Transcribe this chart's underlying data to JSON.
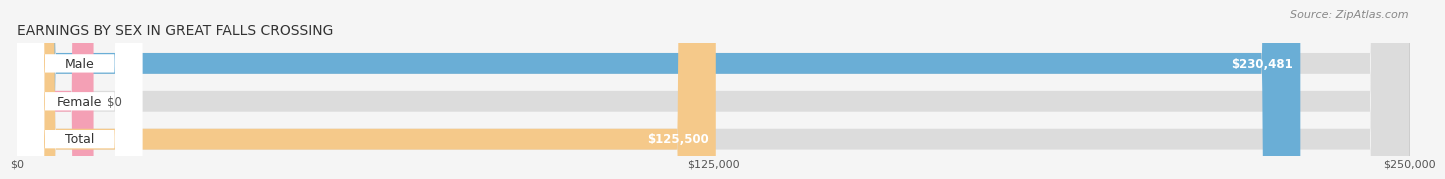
{
  "title": "EARNINGS BY SEX IN GREAT FALLS CROSSING",
  "source": "Source: ZipAtlas.com",
  "categories": [
    "Male",
    "Female",
    "Total"
  ],
  "values": [
    230481,
    0,
    125500
  ],
  "bar_colors": [
    "#6aaed6",
    "#f4a0b5",
    "#f5c98a"
  ],
  "bar_bg_color": "#dcdcdc",
  "value_labels": [
    "$230,481",
    "$0",
    "$125,500"
  ],
  "x_ticks": [
    0,
    125000,
    250000
  ],
  "x_tick_labels": [
    "$0",
    "$125,000",
    "$250,000"
  ],
  "xlim": [
    0,
    250000
  ],
  "title_fontsize": 10,
  "source_fontsize": 8,
  "bar_label_fontsize": 9,
  "value_fontsize": 8.5,
  "background_color": "#f5f5f5"
}
